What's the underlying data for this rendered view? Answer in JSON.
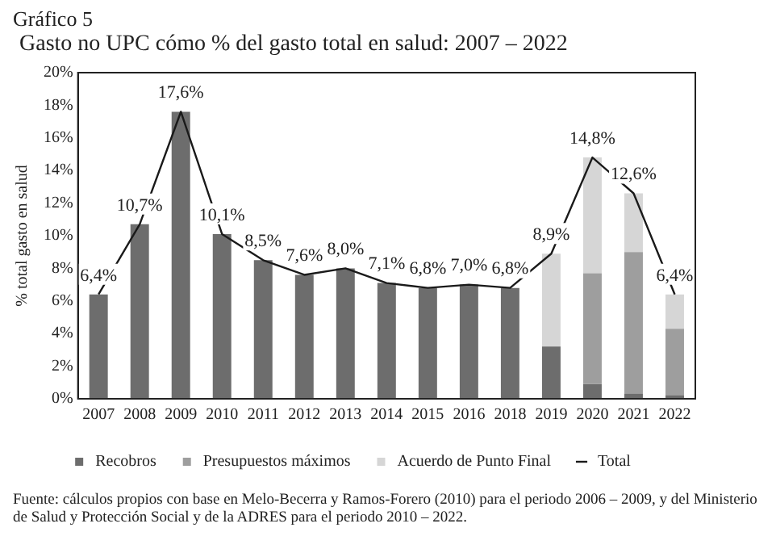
{
  "chart_data": {
    "type": "bar",
    "title": "Gráfico 5",
    "subtitle": "Gasto no UPC cómo % del gasto total en salud: 2007 – 2022",
    "ylabel": "% total gasto en salud",
    "categories": [
      "2007",
      "2008",
      "2009",
      "2010",
      "2011",
      "2012",
      "2013",
      "2014",
      "2015",
      "2016",
      "2018",
      "2019",
      "2020",
      "2021",
      "2022"
    ],
    "stacked": true,
    "series": [
      {
        "name": "Recobros",
        "color": "#6d6d6d",
        "values": [
          6.4,
          10.7,
          17.6,
          10.1,
          8.5,
          7.6,
          8.0,
          7.1,
          6.8,
          7.0,
          6.8,
          3.2,
          0.9,
          0.3,
          0.2
        ]
      },
      {
        "name": "Presupuestos máximos",
        "color": "#9e9e9e",
        "values": [
          null,
          null,
          null,
          null,
          null,
          null,
          null,
          null,
          null,
          null,
          null,
          null,
          6.8,
          8.7,
          4.1
        ]
      },
      {
        "name": "Acuerdo de Punto Final",
        "color": "#d6d6d6",
        "values": [
          null,
          null,
          null,
          null,
          null,
          null,
          null,
          null,
          null,
          null,
          null,
          5.7,
          7.1,
          3.6,
          2.1
        ]
      },
      {
        "name": "Total",
        "type": "line",
        "color": "#1a1a1a",
        "values": [
          6.4,
          10.7,
          17.6,
          10.1,
          8.5,
          7.6,
          8.0,
          7.1,
          6.8,
          7.0,
          6.8,
          8.9,
          14.8,
          12.6,
          6.4
        ],
        "value_labels": [
          "6,4%",
          "10,7%",
          "17,6%",
          "10,1%",
          "8,5%",
          "7,6%",
          "8,0%",
          "7,1%",
          "6,8%",
          "7,0%",
          "6,8%",
          "8,9%",
          "14,8%",
          "12,6%",
          "6,4%"
        ]
      }
    ],
    "ylim": [
      0,
      20
    ],
    "yticks": [
      {
        "value": 0,
        "label": "0%"
      },
      {
        "value": 2,
        "label": "2%"
      },
      {
        "value": 4,
        "label": "4%"
      },
      {
        "value": 6,
        "label": "6%"
      },
      {
        "value": 8,
        "label": "8%"
      },
      {
        "value": 10,
        "label": "10%"
      },
      {
        "value": 12,
        "label": "12%"
      },
      {
        "value": 14,
        "label": "14%"
      },
      {
        "value": 16,
        "label": "16%"
      },
      {
        "value": 18,
        "label": "18%"
      },
      {
        "value": 20,
        "label": "20%"
      }
    ],
    "grid": false,
    "legend": "bottom",
    "marker": "none",
    "annotations": [
      "Fuente: cálculos propios con base en Melo-Becerra y Ramos-Forero (2010) para el periodo 2006 – 2009, y del Ministerio de Salud y Protección Social y de la ADRES para el periodo 2010 – 2022."
    ]
  }
}
